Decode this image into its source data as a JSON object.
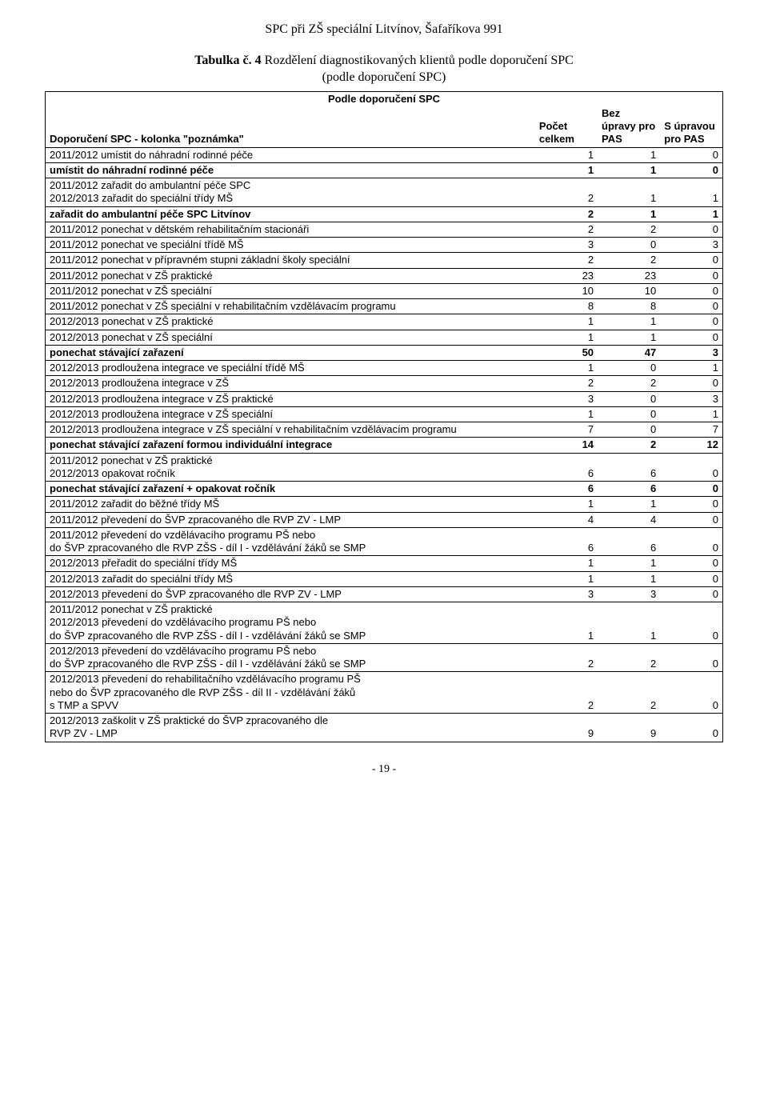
{
  "header": "SPC při ZŠ speciální Litvínov, Šafaříkova 991",
  "title_line1_prefix": "Tabulka č. 4",
  "title_line1_rest": " Rozdělení diagnostikovaných klientů podle doporučení SPC",
  "title_line2": "(podle doporučení SPC)",
  "table_caption": "Podle doporučení SPC",
  "col_headers": {
    "label": "Doporučení SPC - kolonka \"poznámka\"",
    "count": "Počet celkem",
    "bez": "Bez úpravy pro PAS",
    "supr": "S úpravou pro PAS"
  },
  "rows": [
    {
      "label": "2011/2012 umístit do náhradní rodinné péče",
      "a": "1",
      "b": "1",
      "c": "0",
      "bold": false
    },
    {
      "label": "umístit do náhradní rodinné péče",
      "a": "1",
      "b": "1",
      "c": "0",
      "bold": true
    },
    {
      "label": "2011/2012 zařadit do ambulantní péče SPC\n2012/2013 zařadit do speciální třídy MŠ",
      "a": "2",
      "b": "1",
      "c": "1",
      "bold": false
    },
    {
      "label": "zařadit do ambulantní péče SPC Litvínov",
      "a": "2",
      "b": "1",
      "c": "1",
      "bold": true
    },
    {
      "label": "2011/2012 ponechat v dětském rehabilitačním stacionáři",
      "a": "2",
      "b": "2",
      "c": "0",
      "bold": false
    },
    {
      "label": "2011/2012 ponechat ve speciální třídě MŠ",
      "a": "3",
      "b": "0",
      "c": "3",
      "bold": false
    },
    {
      "label": "2011/2012 ponechat v přípravném stupni základní školy speciální",
      "a": "2",
      "b": "2",
      "c": "0",
      "bold": false
    },
    {
      "label": "2011/2012 ponechat v ZŠ praktické",
      "a": "23",
      "b": "23",
      "c": "0",
      "bold": false
    },
    {
      "label": "2011/2012 ponechat v ZŠ speciální",
      "a": "10",
      "b": "10",
      "c": "0",
      "bold": false
    },
    {
      "label": "2011/2012 ponechat v ZŠ speciální v rehabilitačním vzdělávacím programu",
      "a": "8",
      "b": "8",
      "c": "0",
      "bold": false
    },
    {
      "label": "2012/2013 ponechat v ZŠ praktické",
      "a": "1",
      "b": "1",
      "c": "0",
      "bold": false
    },
    {
      "label": "2012/2013 ponechat v ZŠ speciální",
      "a": "1",
      "b": "1",
      "c": "0",
      "bold": false
    },
    {
      "label": "ponechat stávající zařazení",
      "a": "50",
      "b": "47",
      "c": "3",
      "bold": true
    },
    {
      "label": "2012/2013 prodloužena integrace ve speciální třídě MŠ",
      "a": "1",
      "b": "0",
      "c": "1",
      "bold": false
    },
    {
      "label": "2012/2013 prodloužena integrace v ZŠ",
      "a": "2",
      "b": "2",
      "c": "0",
      "bold": false
    },
    {
      "label": "2012/2013 prodloužena integrace v ZŠ praktické",
      "a": "3",
      "b": "0",
      "c": "3",
      "bold": false
    },
    {
      "label": "2012/2013 prodloužena integrace v ZŠ speciální",
      "a": "1",
      "b": "0",
      "c": "1",
      "bold": false
    },
    {
      "label": "2012/2013 prodloužena integrace v ZŠ speciální v rehabilitačním vzdělávacím programu",
      "a": "7",
      "b": "0",
      "c": "7",
      "bold": false
    },
    {
      "label": "ponechat stávající zařazení formou individuální integrace",
      "a": "14",
      "b": "2",
      "c": "12",
      "bold": true
    },
    {
      "label": "2011/2012 ponechat v ZŠ praktické\n2012/2013 opakovat ročník",
      "a": "6",
      "b": "6",
      "c": "0",
      "bold": false
    },
    {
      "label": "ponechat stávající zařazení + opakovat ročník",
      "a": "6",
      "b": "6",
      "c": "0",
      "bold": true
    },
    {
      "label": "2011/2012 zařadit do běžné třídy MŠ",
      "a": "1",
      "b": "1",
      "c": "0",
      "bold": false
    },
    {
      "label": "2011/2012 převedení do ŠVP zpracovaného dle RVP ZV - LMP",
      "a": "4",
      "b": "4",
      "c": "0",
      "bold": false
    },
    {
      "label": "2011/2012 převedení do vzdělávacího programu PŠ nebo\ndo ŠVP zpracovaného dle RVP ZŠS - díl I - vzdělávání žáků se SMP",
      "a": "6",
      "b": "6",
      "c": "0",
      "bold": false
    },
    {
      "label": "2012/2013 přeřadit do speciální třídy MŠ",
      "a": "1",
      "b": "1",
      "c": "0",
      "bold": false
    },
    {
      "label": "2012/2013 zařadit do speciální třídy MŠ",
      "a": "1",
      "b": "1",
      "c": "0",
      "bold": false
    },
    {
      "label": "2012/2013 převedení do ŠVP zpracovaného dle RVP ZV - LMP",
      "a": "3",
      "b": "3",
      "c": "0",
      "bold": false
    },
    {
      "label": "2011/2012 ponechat v ZŠ praktické\n2012/2013 převedení do vzdělávacího programu PŠ nebo\ndo ŠVP zpracovaného dle RVP ZŠS - díl I - vzdělávání žáků se SMP",
      "a": "1",
      "b": "1",
      "c": "0",
      "bold": false
    },
    {
      "label": "2012/2013 převedení do vzdělávacího programu PŠ nebo\ndo ŠVP zpracovaného dle RVP ZŠS - díl I - vzdělávání žáků se SMP",
      "a": "2",
      "b": "2",
      "c": "0",
      "bold": false
    },
    {
      "label": "2012/2013 převedení do rehabilitačního vzdělávacího programu PŠ\nnebo do ŠVP zpracovaného dle RVP ZŠS - díl II - vzdělávání žáků\ns TMP a SPVV",
      "a": "2",
      "b": "2",
      "c": "0",
      "bold": false
    },
    {
      "label": "2012/2013 zaškolit v ZŠ praktické do ŠVP zpracovaného dle\nRVP ZV - LMP",
      "a": "9",
      "b": "9",
      "c": "0",
      "bold": false
    }
  ],
  "page_number": "- 19 -"
}
